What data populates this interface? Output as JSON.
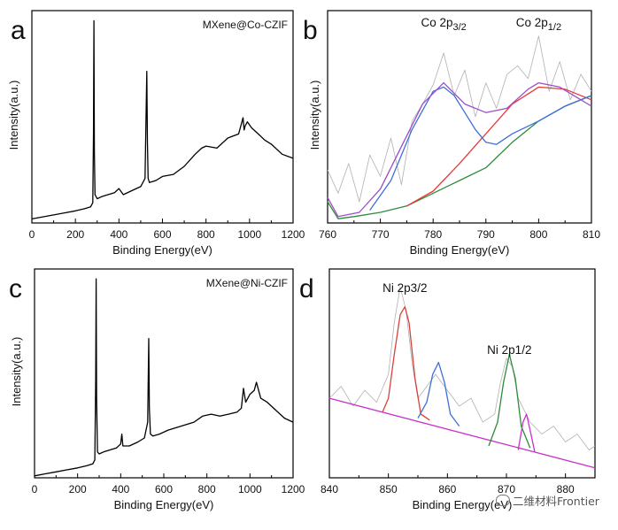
{
  "watermark": "二维材料Frontier",
  "chart_data": [
    {
      "id": "a",
      "type": "line",
      "panel_label": "a",
      "annotation": "MXene@Co-CZIF",
      "xlabel": "Binding Energy(eV)",
      "ylabel": "Intensity(a.u.)",
      "xlim": [
        0,
        1200
      ],
      "xticks": [
        "0",
        "200",
        "400",
        "600",
        "800",
        "1000",
        "1200"
      ],
      "series": [
        {
          "color": "#000000",
          "x": [
            0,
            50,
            100,
            150,
            200,
            240,
            270,
            280,
            283,
            285,
            287,
            290,
            300,
            320,
            350,
            380,
            400,
            420,
            460,
            500,
            520,
            528,
            531,
            534,
            540,
            570,
            600,
            650,
            700,
            750,
            780,
            800,
            850,
            900,
            950,
            970,
            975,
            980,
            990,
            1010,
            1040,
            1070,
            1100,
            1150,
            1200
          ],
          "y": [
            2,
            3,
            4,
            5,
            6,
            7,
            8,
            10,
            45,
            100,
            35,
            14,
            12,
            13,
            14,
            15,
            17,
            14,
            16,
            18,
            22,
            75,
            40,
            22,
            20,
            21,
            23,
            24,
            28,
            34,
            37,
            38,
            37,
            42,
            44,
            52,
            46,
            48,
            50,
            47,
            44,
            41,
            39,
            34,
            32
          ]
        }
      ]
    },
    {
      "id": "b",
      "type": "line",
      "panel_label": "b",
      "xlabel": "Binding Energy(eV)",
      "ylabel": "Intensity(a.u.)",
      "xlim": [
        760,
        810
      ],
      "xticks": [
        "760",
        "770",
        "780",
        "790",
        "800",
        "810"
      ],
      "peak_labels": [
        {
          "base": "Co 2p",
          "sub": "3/2",
          "x": 782
        },
        {
          "base": "Co 2p",
          "sub": "1/2",
          "x": 800
        }
      ],
      "series": [
        {
          "color": "#b0b0b0",
          "role": "raw",
          "x": [
            760,
            762,
            764,
            766,
            768,
            770,
            772,
            774,
            776,
            778,
            780,
            782,
            784,
            786,
            788,
            790,
            792,
            794,
            796,
            798,
            800,
            802,
            804,
            806,
            808,
            810
          ],
          "y": [
            25,
            14,
            28,
            10,
            32,
            22,
            40,
            18,
            48,
            56,
            65,
            80,
            60,
            72,
            50,
            66,
            54,
            70,
            74,
            68,
            88,
            62,
            76,
            58,
            70,
            62
          ]
        },
        {
          "color": "#2e8b3a",
          "role": "background",
          "x": [
            760,
            762,
            765,
            770,
            775,
            780,
            785,
            790,
            795,
            800,
            805,
            810
          ],
          "y": [
            10,
            2,
            3,
            5,
            8,
            14,
            20,
            26,
            38,
            48,
            55,
            60
          ]
        },
        {
          "color": "#e53935",
          "role": "fit-2p1/2",
          "x": [
            775,
            780,
            785,
            790,
            795,
            800,
            805,
            810
          ],
          "y": [
            8,
            15,
            28,
            42,
            56,
            64,
            63,
            58
          ]
        },
        {
          "color": "#3f6fd8",
          "role": "fit-2p3/2",
          "x": [
            768,
            772,
            776,
            780,
            782,
            784,
            786,
            788,
            790,
            792,
            795,
            800,
            805,
            810
          ],
          "y": [
            6,
            20,
            44,
            62,
            64,
            60,
            52,
            44,
            38,
            37,
            42,
            48,
            55,
            60
          ]
        },
        {
          "color": "#9b4dca",
          "role": "envelope",
          "x": [
            760,
            762,
            766,
            770,
            774,
            778,
            782,
            786,
            790,
            794,
            798,
            800,
            804,
            808,
            810
          ],
          "y": [
            12,
            3,
            5,
            16,
            36,
            56,
            66,
            56,
            52,
            54,
            63,
            66,
            64,
            58,
            55
          ]
        }
      ]
    },
    {
      "id": "c",
      "type": "line",
      "panel_label": "c",
      "annotation": "MXene@Ni-CZIF",
      "xlabel": "Binding Energy(eV)",
      "ylabel": "Intensity(a.u.)",
      "xlim": [
        0,
        1200
      ],
      "xticks": [
        "0",
        "200",
        "400",
        "600",
        "800",
        "1000",
        "1200"
      ],
      "series": [
        {
          "color": "#000000",
          "x": [
            0,
            50,
            100,
            150,
            200,
            240,
            270,
            280,
            284,
            286,
            288,
            292,
            300,
            320,
            350,
            380,
            400,
            405,
            410,
            440,
            480,
            510,
            525,
            530,
            533,
            538,
            550,
            580,
            620,
            680,
            740,
            780,
            820,
            860,
            900,
            940,
            960,
            970,
            980,
            1000,
            1020,
            1030,
            1050,
            1080,
            1120,
            1160,
            1200
          ],
          "y": [
            1,
            2,
            3,
            4,
            5,
            6,
            7,
            9,
            50,
            100,
            40,
            13,
            12,
            13,
            14,
            15,
            17,
            22,
            16,
            16,
            18,
            20,
            28,
            70,
            35,
            22,
            21,
            22,
            24,
            26,
            28,
            31,
            32,
            31,
            32,
            33,
            35,
            45,
            38,
            42,
            44,
            48,
            40,
            38,
            34,
            30,
            28
          ]
        }
      ]
    },
    {
      "id": "d",
      "type": "line",
      "panel_label": "d",
      "xlabel": "Binding Energy(eV)",
      "xlim": [
        840,
        885
      ],
      "xticks": [
        "840",
        "850",
        "860",
        "870",
        "880"
      ],
      "peak_labels": [
        {
          "text": "Ni 2p3/2",
          "x": 852.8
        },
        {
          "text": "Ni 2p1/2",
          "x": 870.5
        }
      ],
      "series": [
        {
          "color": "#b0b0b0",
          "role": "raw",
          "x": [
            840,
            842,
            844,
            846,
            848,
            850,
            851,
            852,
            853,
            854,
            855,
            856,
            858,
            860,
            862,
            864,
            866,
            868,
            869,
            870,
            871,
            872,
            873,
            874,
            876,
            878,
            880,
            882,
            884,
            885
          ],
          "y": [
            40,
            46,
            36,
            44,
            38,
            52,
            78,
            96,
            84,
            58,
            40,
            44,
            52,
            44,
            36,
            40,
            28,
            32,
            48,
            60,
            56,
            40,
            34,
            28,
            22,
            26,
            18,
            22,
            14,
            16
          ]
        },
        {
          "color": "#c832c8",
          "role": "background",
          "x": [
            840,
            885
          ],
          "y": [
            40,
            5
          ]
        },
        {
          "color": "#d9423a",
          "role": "fit-2p3/2",
          "x": [
            849,
            850,
            851,
            852,
            852.8,
            853.5,
            854.5,
            855.5,
            857
          ],
          "y": [
            33,
            40,
            62,
            82,
            86,
            78,
            50,
            32,
            29
          ]
        },
        {
          "color": "#3f6fd8",
          "role": "satellite-2p3/2",
          "x": [
            855,
            856.5,
            857.5,
            858.5,
            859.5,
            860.5,
            862
          ],
          "y": [
            30,
            38,
            52,
            58,
            48,
            32,
            26
          ]
        },
        {
          "color": "#2e8b3a",
          "role": "fit-2p1/2",
          "x": [
            867,
            868.5,
            869.5,
            870.5,
            871.5,
            872.5,
            874
          ],
          "y": [
            16,
            28,
            48,
            62,
            50,
            26,
            15
          ]
        },
        {
          "color": "#c832c8",
          "role": "satellite-2p1/2",
          "x": [
            872,
            872.8,
            873.4,
            874,
            874.8
          ],
          "y": [
            14,
            28,
            32,
            24,
            13
          ]
        }
      ]
    }
  ]
}
